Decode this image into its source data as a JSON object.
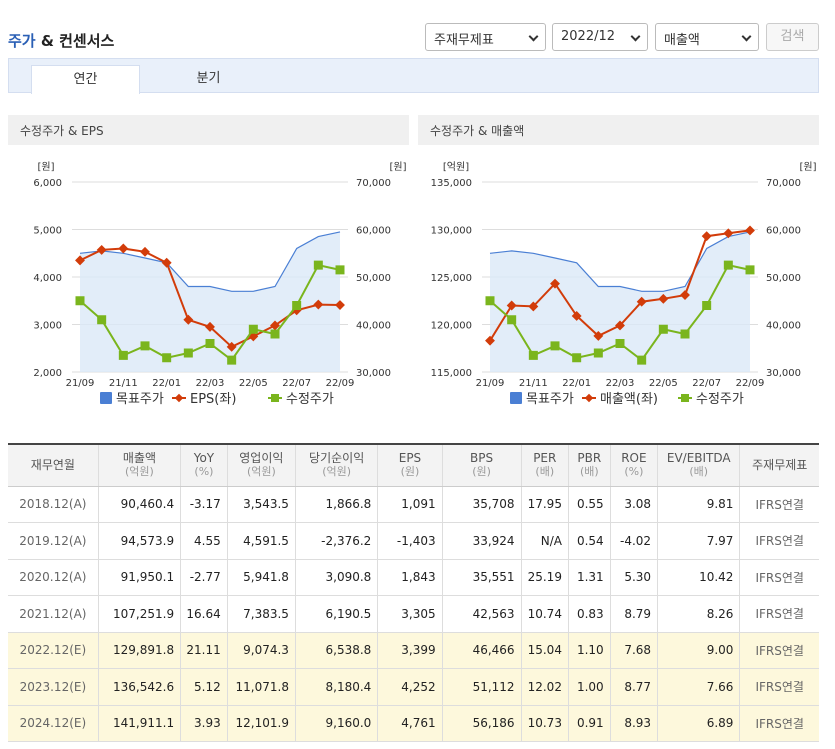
{
  "header": {
    "title_accent": "주가",
    "title_rest": " & 컨센서스",
    "select_statement": "주재무제표",
    "select_period": "2022/12",
    "select_item": "매출액",
    "search_label": "검색"
  },
  "tabs": [
    {
      "label": "연간"
    },
    {
      "label": "분기"
    }
  ],
  "left_chart_title": "수정주가 & EPS",
  "right_chart_title": "수정주가 & 매출액",
  "chart_data": [
    {
      "type": "line",
      "title": "수정주가 & EPS",
      "x": [
        "21/09",
        "21/10",
        "21/11",
        "21/12",
        "22/01",
        "22/02",
        "22/03",
        "22/04",
        "22/05",
        "22/06",
        "22/07",
        "22/08",
        "22/09"
      ],
      "x_tick_labels": [
        "21/09",
        "21/11",
        "22/01",
        "22/03",
        "22/05",
        "22/07",
        "22/09"
      ],
      "left_axis_unit": "[원]",
      "right_axis_unit": "[원]",
      "left_ylim": [
        2000,
        6000
      ],
      "left_ticks": [
        "6,000",
        "5,000",
        "4,000",
        "3,000",
        "2,000"
      ],
      "right_ylim": [
        30000,
        70000
      ],
      "right_ticks": [
        "70,000",
        "60,000",
        "50,000",
        "40,000",
        "30,000"
      ],
      "series": [
        {
          "name": "목표주가",
          "axis": "right",
          "style": "area",
          "color": "#4a7fd4",
          "x": [
            0,
            1,
            2,
            3,
            4,
            5,
            6,
            7,
            8,
            9,
            10,
            11,
            12
          ],
          "values": [
            55000,
            55500,
            55000,
            54000,
            53000,
            48000,
            48000,
            47000,
            47000,
            48000,
            56000,
            58500,
            59500
          ]
        },
        {
          "name": "EPS(좌)",
          "axis": "left",
          "style": "diamond",
          "color": "#d23c0a",
          "x": [
            0,
            1,
            2,
            3,
            4,
            5,
            6,
            7,
            8,
            9,
            10,
            11,
            12
          ],
          "values": [
            4350,
            4570,
            4600,
            4530,
            4300,
            3100,
            2950,
            2530,
            2750,
            2980,
            3300,
            3420,
            3410
          ]
        },
        {
          "name": "수정주가",
          "axis": "right",
          "style": "square",
          "color": "#7ab51d",
          "x": [
            0,
            1,
            2,
            3,
            4,
            5,
            6,
            7,
            8,
            9,
            10,
            11,
            12
          ],
          "values": [
            45000,
            41000,
            33500,
            35500,
            33000,
            34000,
            36000,
            32500,
            39000,
            38000,
            44000,
            52500,
            51500
          ]
        }
      ],
      "legend": "bottom"
    },
    {
      "type": "line",
      "title": "수정주가 & 매출액",
      "x": [
        "21/09",
        "21/10",
        "21/11",
        "21/12",
        "22/01",
        "22/02",
        "22/03",
        "22/04",
        "22/05",
        "22/06",
        "22/07",
        "22/08",
        "22/09"
      ],
      "x_tick_labels": [
        "21/09",
        "21/11",
        "22/01",
        "22/03",
        "22/05",
        "22/07",
        "22/09"
      ],
      "left_axis_unit": "[억원]",
      "right_axis_unit": "[원]",
      "left_ylim": [
        115000,
        135000
      ],
      "left_ticks": [
        "135,000",
        "130,000",
        "125,000",
        "120,000",
        "115,000"
      ],
      "right_ylim": [
        30000,
        70000
      ],
      "right_ticks": [
        "70,000",
        "60,000",
        "50,000",
        "40,000",
        "30,000"
      ],
      "series": [
        {
          "name": "목표주가",
          "axis": "right",
          "style": "area",
          "color": "#4a7fd4",
          "x": [
            0,
            1,
            2,
            3,
            4,
            5,
            6,
            7,
            8,
            9,
            10,
            11,
            12
          ],
          "values": [
            55000,
            55500,
            55000,
            54000,
            53000,
            48000,
            48000,
            47000,
            47000,
            48000,
            56000,
            58500,
            59500
          ]
        },
        {
          "name": "매출액(좌)",
          "axis": "left",
          "style": "diamond",
          "color": "#d23c0a",
          "x": [
            0,
            1,
            2,
            3,
            4,
            5,
            6,
            7,
            8,
            9,
            10,
            11,
            12
          ],
          "values": [
            118300,
            122000,
            121900,
            124300,
            120900,
            118800,
            119900,
            122400,
            122700,
            123100,
            129300,
            129600,
            129900
          ]
        },
        {
          "name": "수정주가",
          "axis": "right",
          "style": "square",
          "color": "#7ab51d",
          "x": [
            0,
            1,
            2,
            3,
            4,
            5,
            6,
            7,
            8,
            9,
            10,
            11,
            12
          ],
          "values": [
            45000,
            41000,
            33500,
            35500,
            33000,
            34000,
            36000,
            32500,
            39000,
            38000,
            44000,
            52500,
            51500
          ]
        }
      ],
      "legend": "bottom"
    }
  ],
  "table": {
    "columns": [
      {
        "label": "재무연월",
        "unit": ""
      },
      {
        "label": "매출액",
        "unit": "(억원)"
      },
      {
        "label": "YoY",
        "unit": "(%)"
      },
      {
        "label": "영업이익",
        "unit": "(억원)"
      },
      {
        "label": "당기순이익",
        "unit": "(억원)"
      },
      {
        "label": "EPS",
        "unit": "(원)"
      },
      {
        "label": "BPS",
        "unit": "(원)"
      },
      {
        "label": "PER",
        "unit": "(배)"
      },
      {
        "label": "PBR",
        "unit": "(배)"
      },
      {
        "label": "ROE",
        "unit": "(%)"
      },
      {
        "label": "EV/EBITDA",
        "unit": "(배)"
      },
      {
        "label": "주재무제표",
        "unit": ""
      }
    ],
    "rows": [
      [
        "2018.12(A)",
        "90,460.4",
        "-3.17",
        "3,543.5",
        "1,866.8",
        "1,091",
        "35,708",
        "17.95",
        "0.55",
        "3.08",
        "9.81",
        "IFRS연결"
      ],
      [
        "2019.12(A)",
        "94,573.9",
        "4.55",
        "4,591.5",
        "-2,376.2",
        "-1,403",
        "33,924",
        "N/A",
        "0.54",
        "-4.02",
        "7.97",
        "IFRS연결"
      ],
      [
        "2020.12(A)",
        "91,950.1",
        "-2.77",
        "5,941.8",
        "3,090.8",
        "1,843",
        "35,551",
        "25.19",
        "1.31",
        "5.30",
        "10.42",
        "IFRS연결"
      ],
      [
        "2021.12(A)",
        "107,251.9",
        "16.64",
        "7,383.5",
        "6,190.5",
        "3,305",
        "42,563",
        "10.74",
        "0.83",
        "8.79",
        "8.26",
        "IFRS연결"
      ],
      [
        "2022.12(E)",
        "129,891.8",
        "21.11",
        "9,074.3",
        "6,538.8",
        "3,399",
        "46,466",
        "15.04",
        "1.10",
        "7.68",
        "9.00",
        "IFRS연결"
      ],
      [
        "2023.12(E)",
        "136,542.6",
        "5.12",
        "11,071.8",
        "8,180.4",
        "4,252",
        "51,112",
        "12.02",
        "1.00",
        "8.77",
        "7.66",
        "IFRS연결"
      ],
      [
        "2024.12(E)",
        "141,911.1",
        "3.93",
        "12,101.9",
        "9,160.0",
        "4,761",
        "56,186",
        "10.73",
        "0.91",
        "8.93",
        "6.89",
        "IFRS연결"
      ]
    ],
    "estimate_rows": [
      4,
      5,
      6
    ]
  }
}
